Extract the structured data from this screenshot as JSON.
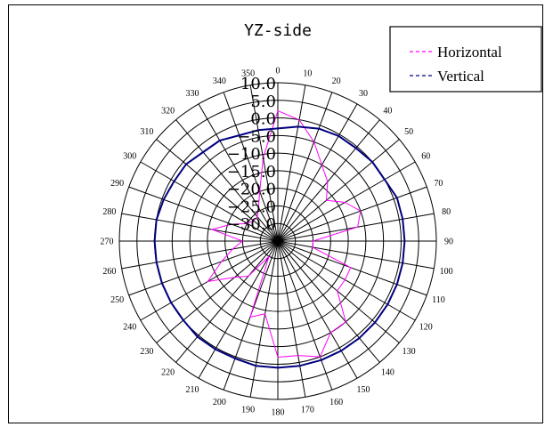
{
  "chart_data": {
    "type": "polar-line",
    "title": "YZ-side",
    "angle_unit": "deg",
    "angle_ticks": [
      0,
      10,
      20,
      30,
      40,
      50,
      60,
      70,
      80,
      90,
      100,
      110,
      120,
      130,
      140,
      150,
      160,
      170,
      180,
      190,
      200,
      210,
      220,
      230,
      240,
      250,
      260,
      270,
      280,
      290,
      300,
      310,
      320,
      330,
      340,
      350
    ],
    "radial_ticks": [
      10.0,
      5.0,
      0.0,
      -5.0,
      -10.0,
      -15.0,
      -20.0,
      -25.0,
      -30.0
    ],
    "radial_tick_labels": [
      "10.0",
      "5.0",
      "0.0",
      "−5.0",
      "−10.0",
      "−15.0",
      "−20.0",
      "−25.0",
      "−30.0"
    ],
    "rlim": [
      -35,
      10
    ],
    "grid": true,
    "legend": {
      "position": "top-right"
    },
    "series": [
      {
        "name": "Horizontal",
        "color": "#ff00ff",
        "dash": "solid",
        "angles": [
          0,
          10,
          20,
          30,
          40,
          50,
          60,
          70,
          80,
          90,
          100,
          110,
          120,
          130,
          140,
          150,
          160,
          170,
          180,
          190,
          200,
          210,
          220,
          230,
          240,
          250,
          260,
          270,
          280,
          290,
          300,
          310,
          320,
          330,
          340,
          350,
          360
        ],
        "values": [
          2,
          0,
          -5,
          -10,
          -13,
          -17,
          -13,
          -10,
          -12,
          -25,
          -25,
          -13,
          -13,
          -13,
          -5,
          -5,
          0,
          -2,
          -2,
          -14,
          -12,
          -30,
          -22,
          -19,
          -12,
          -18,
          -22,
          -25,
          -16,
          -21,
          -25,
          -26,
          -26,
          -24,
          -20,
          -11,
          2
        ]
      },
      {
        "name": "Vertical",
        "color": "#000080",
        "dash": "solid",
        "angles": [
          0,
          10,
          20,
          30,
          40,
          50,
          60,
          70,
          80,
          90,
          100,
          110,
          120,
          130,
          140,
          150,
          160,
          170,
          180,
          190,
          200,
          210,
          220,
          230,
          240,
          250,
          260,
          270,
          280,
          290,
          300,
          310,
          320,
          330,
          340,
          350,
          360
        ],
        "values": [
          -3,
          -2,
          -1,
          -0.5,
          -0.5,
          0,
          0,
          1,
          1,
          1,
          1,
          1,
          1,
          1,
          1,
          1,
          1,
          1,
          1,
          1,
          0.5,
          0.5,
          0.5,
          0,
          0,
          0,
          0,
          0,
          0,
          -0.5,
          -1,
          -1,
          -2,
          -2,
          -3,
          -3,
          -3
        ]
      }
    ]
  }
}
